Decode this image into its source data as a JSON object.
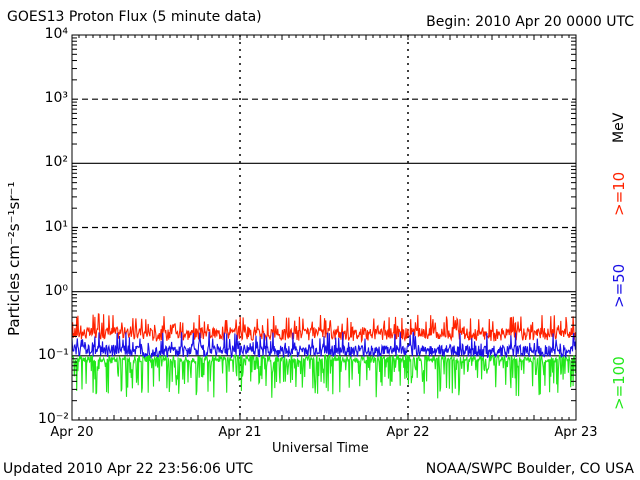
{
  "header": {
    "title": "GOES13 Proton Flux (5 minute data)",
    "begin": "Begin: 2010 Apr 20 0000 UTC"
  },
  "footer": {
    "updated": "Updated 2010 Apr 22 23:56:06 UTC",
    "credit": "NOAA/SWPC Boulder, CO USA"
  },
  "colors": {
    "ge10": "#ff2200",
    "ge50": "#1a10e6",
    "ge100": "#22e81a",
    "grid": "#000000"
  },
  "chart_data": {
    "type": "line",
    "title": "GOES13 Proton Flux (5 minute data)",
    "xlabel": "Universal Time",
    "ylabel": "Particles cm⁻²s⁻¹sr⁻¹",
    "yscale": "log",
    "ylim": [
      0.01,
      10000
    ],
    "xlim": [
      "2010-04-20",
      "2010-04-23"
    ],
    "x_ticks": [
      "Apr 20",
      "Apr 21",
      "Apr 22",
      "Apr 23"
    ],
    "y_ticks": [
      "10⁻²",
      "10⁻¹",
      "10⁰",
      "10¹",
      "10²",
      "10³",
      "10⁴"
    ],
    "y_tick_values": [
      0.01,
      0.1,
      1,
      10,
      100,
      1000,
      10000
    ],
    "threshold_lines": [
      10,
      1000
    ],
    "legend_unit": "MeV",
    "series": [
      {
        "name": ">=10",
        "color": "#ff2200",
        "x": [
          "2010-04-20 00:00",
          "2010-04-20 06:00",
          "2010-04-20 12:00",
          "2010-04-20 18:00",
          "2010-04-21 00:00",
          "2010-04-21 06:00",
          "2010-04-21 12:00",
          "2010-04-21 18:00",
          "2010-04-22 00:00",
          "2010-04-22 06:00",
          "2010-04-22 12:00",
          "2010-04-22 18:00",
          "2010-04-23 00:00"
        ],
        "values": [
          0.22,
          0.23,
          0.21,
          0.22,
          0.22,
          0.21,
          0.22,
          0.21,
          0.22,
          0.22,
          0.21,
          0.22,
          0.21
        ]
      },
      {
        "name": ">=50",
        "color": "#1a10e6",
        "x": [
          "2010-04-20 00:00",
          "2010-04-20 06:00",
          "2010-04-20 12:00",
          "2010-04-20 18:00",
          "2010-04-21 00:00",
          "2010-04-21 06:00",
          "2010-04-21 12:00",
          "2010-04-21 18:00",
          "2010-04-22 00:00",
          "2010-04-22 06:00",
          "2010-04-22 12:00",
          "2010-04-22 18:00",
          "2010-04-23 00:00"
        ],
        "values": [
          0.12,
          0.12,
          0.115,
          0.12,
          0.12,
          0.115,
          0.12,
          0.115,
          0.12,
          0.12,
          0.115,
          0.12,
          0.115
        ]
      },
      {
        "name": ">=100",
        "color": "#22e81a",
        "x": [
          "2010-04-20 00:00",
          "2010-04-20 06:00",
          "2010-04-20 12:00",
          "2010-04-20 18:00",
          "2010-04-21 00:00",
          "2010-04-21 06:00",
          "2010-04-21 12:00",
          "2010-04-21 18:00",
          "2010-04-22 00:00",
          "2010-04-22 06:00",
          "2010-04-22 12:00",
          "2010-04-22 18:00",
          "2010-04-23 00:00"
        ],
        "values": [
          0.09,
          0.085,
          0.09,
          0.085,
          0.09,
          0.085,
          0.09,
          0.085,
          0.09,
          0.085,
          0.09,
          0.085,
          0.09
        ]
      }
    ]
  }
}
